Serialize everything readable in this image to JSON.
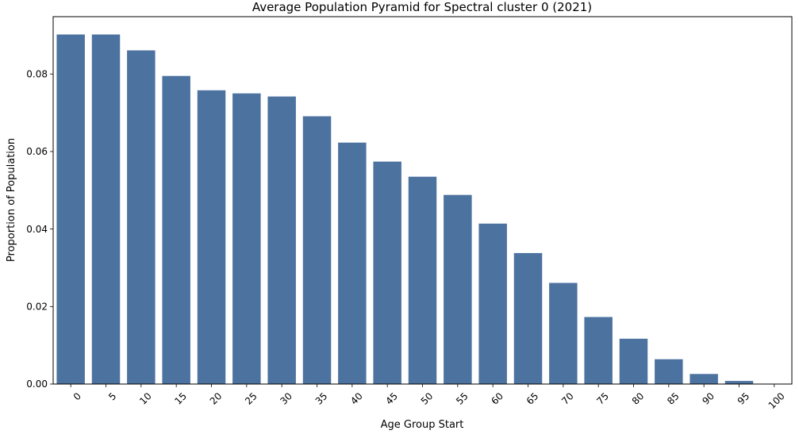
{
  "chart_data": {
    "type": "bar",
    "title": "Average Population Pyramid for Spectral cluster 0 (2021)",
    "xlabel": "Age Group Start",
    "ylabel": "Proportion of Population",
    "categories": [
      "0",
      "5",
      "10",
      "15",
      "20",
      "25",
      "30",
      "35",
      "40",
      "45",
      "50",
      "55",
      "60",
      "65",
      "70",
      "75",
      "80",
      "85",
      "90",
      "95",
      "100"
    ],
    "values": [
      0.0902,
      0.0902,
      0.0861,
      0.0795,
      0.0758,
      0.075,
      0.0742,
      0.0691,
      0.0623,
      0.0574,
      0.0535,
      0.0488,
      0.0414,
      0.0338,
      0.0261,
      0.0173,
      0.0117,
      0.0064,
      0.0026,
      0.0008,
      0.0001
    ],
    "ylim": [
      0,
      0.0948
    ],
    "yticks": [
      0.0,
      0.02,
      0.04,
      0.06,
      0.08
    ],
    "ytick_labels": [
      "0.00",
      "0.02",
      "0.04",
      "0.06",
      "0.08"
    ],
    "bar_color": "#4c72a0",
    "grid": false,
    "legend": "none"
  }
}
